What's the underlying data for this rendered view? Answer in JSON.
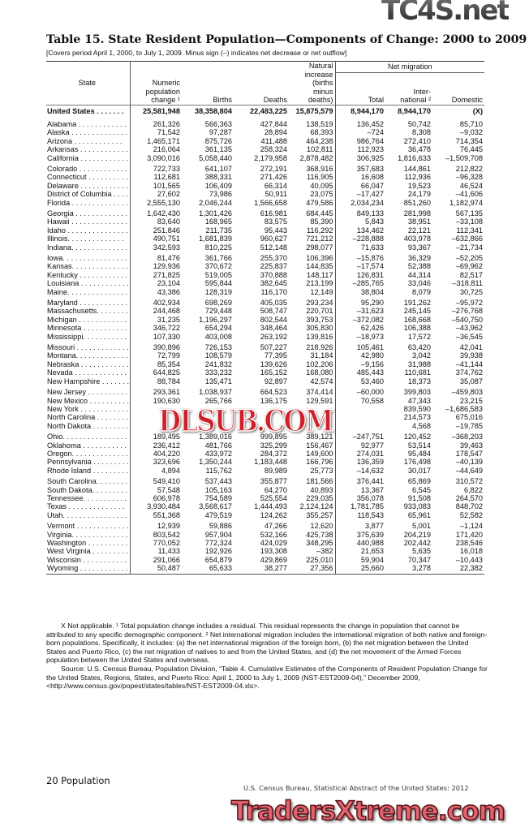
{
  "title": "Table 15. State Resident Population—Components of Change: 2000 to 2009",
  "subtitle": "[Covers period April 1, 2000, to July 1, 2009. Minus sign (–) indicates net decrease or net outflow]",
  "headers": {
    "state": "State",
    "pop_change": "Numeric population change ¹",
    "births": "Births",
    "deaths": "Deaths",
    "natural": "Natural increase (births minus deaths)",
    "net_migration": "Net migration",
    "total": "Total",
    "international": "Inter- national ²",
    "domestic": "Domestic"
  },
  "us_row": [
    "United States . . . . . . .",
    "25,581,948",
    "38,358,804",
    "22,483,225",
    "15,875,579",
    "8,944,170",
    "8,944,170",
    "(X)"
  ],
  "groups": [
    [
      [
        "Alabama . . . . . . . . . . . .",
        "261,326",
        "566,363",
        "427,844",
        "138,519",
        "136,452",
        "50,742",
        "85,710"
      ],
      [
        "Alaska . . . . . . . . . . . . . .",
        "71,542",
        "97,287",
        "28,894",
        "68,393",
        "–724",
        "8,308",
        "–9,032"
      ],
      [
        "Arizona . . . . . . . . . . . .",
        "1,465,171",
        "875,726",
        "411,488",
        "464,238",
        "986,764",
        "272,410",
        "714,354"
      ],
      [
        "Arkansas . . . . . . . . . . . .",
        "216,064",
        "361,135",
        "258,324",
        "102,811",
        "112,923",
        "36,478",
        "76,445"
      ],
      [
        "California . . . . . . . . . . . .",
        "3,090,016",
        "5,058,440",
        "2,179,958",
        "2,878,482",
        "306,925",
        "1,816,633",
        "–1,509,708"
      ]
    ],
    [
      [
        "Colorado . . . . . . . . . . . .",
        "722,733",
        "641,107",
        "272,191",
        "368,916",
        "357,683",
        "144,861",
        "212,822"
      ],
      [
        "Connecticut . . . . . . . . . .",
        "112,681",
        "388,331",
        "271,426",
        "116,905",
        "16,608",
        "112,936",
        "–96,328"
      ],
      [
        "Delaware . . . . . . . . . . . .",
        "101,565",
        "106,409",
        "66,314",
        "40,095",
        "66,047",
        "19,523",
        "46,524"
      ],
      [
        "District of Columbia . . . .",
        "27,602",
        "73,986",
        "50,911",
        "23,075",
        "–17,427",
        "24,179",
        "–41,606"
      ],
      [
        "Florida . . . . . . . . . . . . . .",
        "2,555,130",
        "2,046,244",
        "1,566,658",
        "479,586",
        "2,034,234",
        "851,260",
        "1,182,974"
      ]
    ],
    [
      [
        "Georgia . . . . . . . . . . . . .",
        "1,642,430",
        "1,301,426",
        "616,981",
        "684,445",
        "849,133",
        "281,998",
        "567,135"
      ],
      [
        "Hawaii . . . . . . . . . . . . . .",
        "83,640",
        "168,965",
        "83,575",
        "85,390",
        "5,843",
        "38,951",
        "–33,108"
      ],
      [
        "Idaho . . . . . . . . . . . . . . .",
        "251,846",
        "211,735",
        "95,443",
        "116,292",
        "134,462",
        "22,121",
        "112,341"
      ],
      [
        "Illinois. . . . . . . . . . . . . .",
        "490,751",
        "1,681,839",
        "960,627",
        "721,212",
        "–228,888",
        "403,978",
        "–632,866"
      ],
      [
        "Indiana. . . . . . . . . . . . . .",
        "342,593",
        "810,225",
        "512,148",
        "298,077",
        "71,633",
        "93,367",
        "–21,734"
      ]
    ],
    [
      [
        "Iowa. . . . . . . . . . . . . . . .",
        "81,476",
        "361,766",
        "255,370",
        "106,396",
        "–15,876",
        "36,329",
        "–52,205"
      ],
      [
        "Kansas. . . . . . . . . . . . . .",
        "129,936",
        "370,672",
        "225,837",
        "144,835",
        "–17,574",
        "52,388",
        "–69,962"
      ],
      [
        "Kentucky . . . . . . . . . . . .",
        "271,825",
        "519,005",
        "370,888",
        "148,117",
        "126,831",
        "44,314",
        "82,517"
      ],
      [
        "Louisiana . . . . . . . . . . . .",
        "23,104",
        "595,844",
        "382,645",
        "213,199",
        "–285,765",
        "33,046",
        "–318,811"
      ],
      [
        "Maine. . . . . . . . . . . . . . .",
        "43,386",
        "128,319",
        "116,170",
        "12,149",
        "38,804",
        "8,079",
        "30,725"
      ]
    ],
    [
      [
        "Maryland . . . . . . . . . . . .",
        "402,934",
        "698,269",
        "405,035",
        "293,234",
        "95,290",
        "191,262",
        "–95,972"
      ],
      [
        "Massachusetts. . . . . . . .",
        "244,468",
        "729,448",
        "508,747",
        "220,701",
        "–31,623",
        "245,145",
        "–276,768"
      ],
      [
        "Michigan . . . . . . . . . . . .",
        "31,235",
        "1,196,297",
        "802,544",
        "393,753",
        "–372,082",
        "168,668",
        "–540,750"
      ],
      [
        "Minnesota . . . . . . . . . . .",
        "346,722",
        "654,294",
        "348,464",
        "305,830",
        "62,426",
        "106,388",
        "–43,962"
      ],
      [
        "Mississippi. . . . . . . . . . .",
        "107,330",
        "403,008",
        "263,192",
        "139,816",
        "–18,973",
        "17,572",
        "–36,545"
      ]
    ],
    [
      [
        "Missouri . . . . . . . . . . . . .",
        "390,896",
        "726,153",
        "507,227",
        "218,926",
        "105,461",
        "63,420",
        "42,041"
      ],
      [
        "Montana. . . . . . . . . . . . .",
        "72,799",
        "108,579",
        "77,395",
        "31,184",
        "42,980",
        "3,042",
        "39,938"
      ],
      [
        "Nebraska . . . . . . . . . . . .",
        "85,354",
        "241,832",
        "139,626",
        "102,206",
        "–9,156",
        "31,988",
        "–41,144"
      ],
      [
        "Nevada . . . . . . . . . . . . .",
        "644,825",
        "333,232",
        "165,152",
        "168,080",
        "485,443",
        "110,681",
        "374,762"
      ],
      [
        "New Hampshire . . . . . . .",
        "88,784",
        "135,471",
        "92,897",
        "42,574",
        "53,460",
        "18,373",
        "35,087"
      ]
    ],
    [
      [
        "New Jersey . . . . . . . . . .",
        "293,361",
        "1,038,937",
        "664,523",
        "374,414",
        "–60,000",
        "399,803",
        "–459,803"
      ],
      [
        "New Mexico . . . . . . . . . .",
        "190,630",
        "265,766",
        "136,175",
        "129,591",
        "70,558",
        "47,343",
        "23,215"
      ],
      [
        "New York . . . . . . . . . . . .",
        "",
        "",
        "",
        "",
        "",
        "839,590",
        "–1,686,583"
      ],
      [
        "North Carolina . . . . . . . .",
        "",
        "",
        "",
        "",
        "",
        "214,573",
        "675,016"
      ],
      [
        "North Dakota . . . . . . . . .",
        "",
        "",
        "",
        "",
        "",
        "4,568",
        "–19,785"
      ]
    ],
    [
      [
        "Ohio. . . . . . . . . . . . . . . .",
        "189,495",
        "1,389,016",
        "999,895",
        "389,121",
        "–247,751",
        "120,452",
        "–368,203"
      ],
      [
        "Oklahoma . . . . . . . . . . .",
        "236,412",
        "481,766",
        "325,299",
        "156,467",
        "92,977",
        "53,514",
        "39,463"
      ],
      [
        "Oregon. . . . . . . . . . . . . .",
        "404,220",
        "433,972",
        "284,372",
        "149,600",
        "274,031",
        "95,484",
        "178,547"
      ],
      [
        "Pennsylvania . . . . . . . . .",
        "323,696",
        "1,350,244",
        "1,183,448",
        "166,796",
        "136,359",
        "176,498",
        "–40,139"
      ],
      [
        "Rhode Island . . . . . . . . .",
        "4,894",
        "115,762",
        "89,989",
        "25,773",
        "–14,632",
        "30,017",
        "–44,649"
      ]
    ],
    [
      [
        "South Carolina. . . . . . . .",
        "549,410",
        "537,443",
        "355,877",
        "181,566",
        "376,441",
        "65,869",
        "310,572"
      ],
      [
        "South Dakota. . . . . . . . .",
        "57,548",
        "105,163",
        "64,270",
        "40,893",
        "13,367",
        "6,545",
        "6,822"
      ],
      [
        "Tennessee. . . . . . . . . . .",
        "606,978",
        "754,589",
        "525,554",
        "229,035",
        "356,078",
        "91,508",
        "264,570"
      ],
      [
        "Texas . . . . . . . . . . . . . .",
        "3,930,484",
        "3,568,617",
        "1,444,493",
        "2,124,124",
        "1,781,785",
        "933,083",
        "848,702"
      ],
      [
        "Utah. . . . . . . . . . . . . . . .",
        "551,368",
        "479,519",
        "124,262",
        "355,257",
        "118,543",
        "65,961",
        "52,582"
      ]
    ],
    [
      [
        "Vermont . . . . . . . . . . . . .",
        "12,939",
        "59,886",
        "47,266",
        "12,620",
        "3,877",
        "5,001",
        "–1,124"
      ],
      [
        "Virginia. . . . . . . . . . . . . .",
        "803,542",
        "957,904",
        "532,166",
        "425,738",
        "375,639",
        "204,219",
        "171,420"
      ],
      [
        "Washington . . . . . . . . . .",
        "770,052",
        "772,324",
        "424,029",
        "348,295",
        "440,988",
        "202,442",
        "238,546"
      ],
      [
        "West Virginia . . . . . . . . .",
        "11,433",
        "192,926",
        "193,308",
        "–382",
        "21,653",
        "5,635",
        "16,018"
      ],
      [
        "Wisconsin . . . . . . . . . . .",
        "291,066",
        "654,879",
        "429,869",
        "225,010",
        "59,904",
        "70,347",
        "–10,443"
      ],
      [
        "Wyoming . . . . . . . . . . . .",
        "50,487",
        "65,633",
        "38,277",
        "27,356",
        "25,660",
        "3,278",
        "22,382"
      ]
    ]
  ],
  "notes": {
    "footnotes": "X Not applicable. ¹ Total population change includes a residual. This residual represents the change in population that cannot be attributed to any specific demographic component. ² Net international migration includes the international migration of both native and foreign-born populations. Specifically, it includes: (a) the net international migration of the foreign born, (b) the net migration between the United States and Puerto Rico, (c) the net migration of natives to and  from the United States, and (d) the net movement of the Armed Forces population between the United States and overseas.",
    "source": "Source: U.S. Census Bureau, Population Division, “Table 4. Cumulative Estimates of the Components of Resident Population Change for the United States, Regions, States, and Puerto Rico: April 1, 2000 to July 1, 2009 (NST-EST2009-04),” December 2009, <http://www.census.gov/popest/states/tables/NST-EST2009-04.xls>."
  },
  "footer": {
    "page": "20  Population",
    "source": "U.S. Census Bureau, Statistical Abstract of the United States: 2012"
  },
  "watermarks": {
    "top": "TC4S.net",
    "middle": "DLSUB.COM",
    "bottom": "TradersXtreme.com"
  }
}
